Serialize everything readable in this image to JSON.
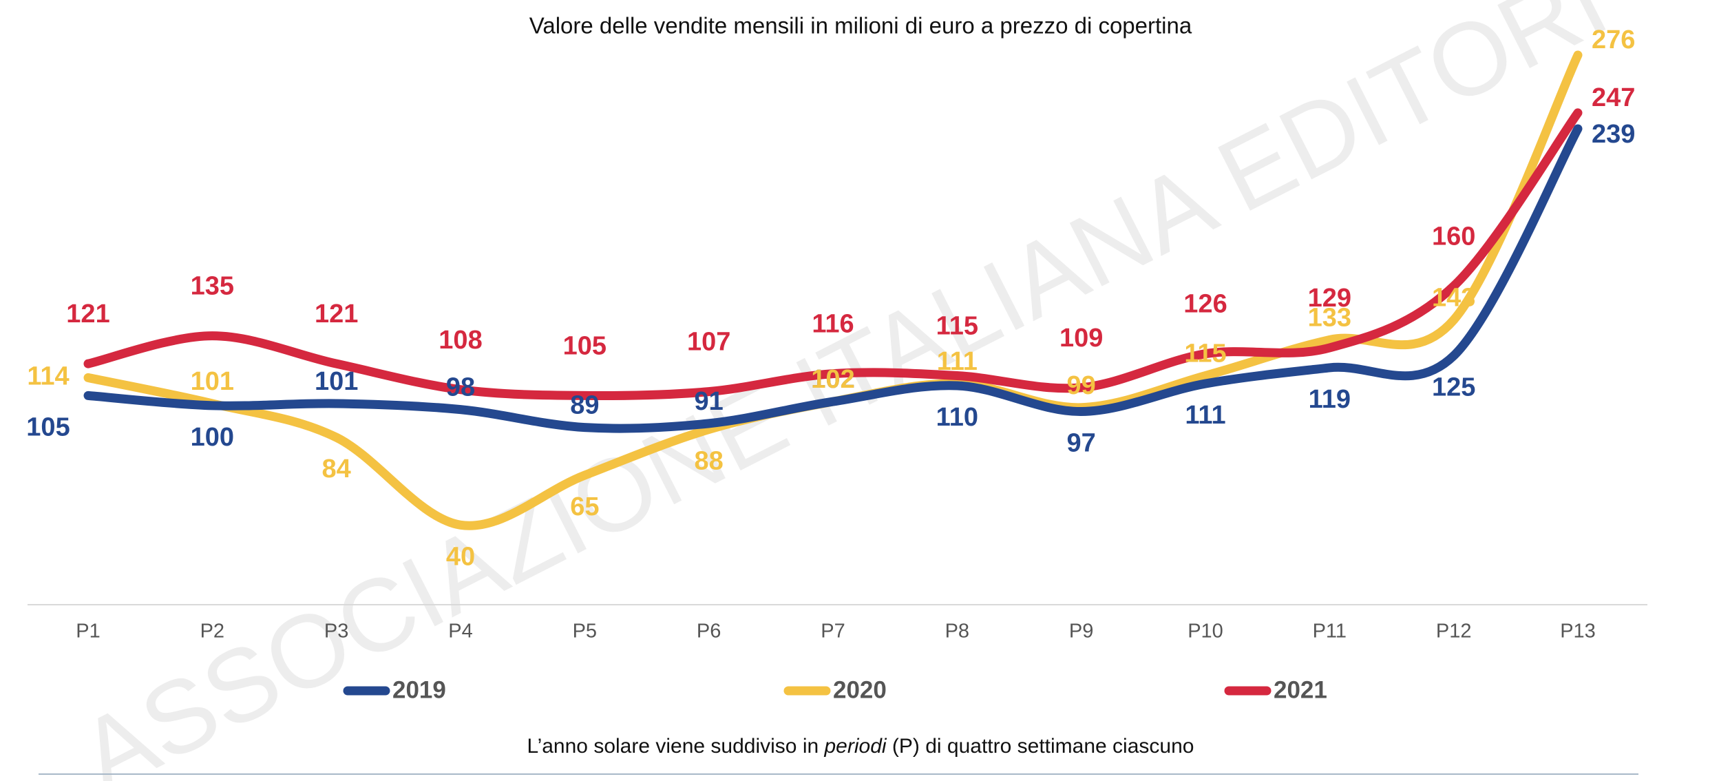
{
  "chart_data": {
    "type": "line",
    "title": "Valore delle vendite mensili in milioni di euro a prezzo di copertina",
    "watermark": "ASSOCIAZIONE ITALIANA EDITORI",
    "categories": [
      "P1",
      "P2",
      "P3",
      "P4",
      "P5",
      "P6",
      "P7",
      "P8",
      "P9",
      "P10",
      "P11",
      "P12",
      "P13"
    ],
    "series": [
      {
        "name": "2019",
        "color": "#24488f",
        "values": [
          105,
          100,
          101,
          98,
          89,
          91,
          102,
          110,
          97,
          111,
          119,
          125,
          239
        ]
      },
      {
        "name": "2020",
        "color": "#f4c242",
        "values": [
          114,
          101,
          84,
          40,
          65,
          88,
          102,
          111,
          99,
          115,
          133,
          143,
          276
        ]
      },
      {
        "name": "2021",
        "color": "#d5283f",
        "values": [
          121,
          135,
          121,
          108,
          105,
          107,
          116,
          115,
          109,
          126,
          129,
          160,
          247
        ]
      }
    ],
    "note": {
      "before": "L’anno solare viene suddiviso in ",
      "italic": "periodi",
      "after": " (P) di quattro settimane ciascuno"
    }
  }
}
